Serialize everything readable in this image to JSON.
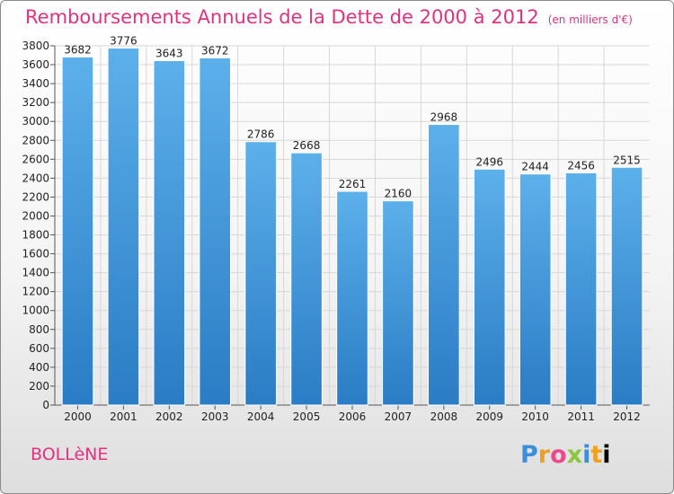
{
  "header": {
    "title": "Remboursements Annuels de la Dette de 2000 à 2012",
    "unit": "(en milliers d'€)"
  },
  "footer": {
    "city": "BOLLèNE",
    "logo": "Proxiti"
  },
  "colors": {
    "title": "#e2317d",
    "bar_light": "#5cb0ea",
    "bar_dark": "#2a7cc4"
  },
  "chart_data": {
    "type": "bar",
    "title": "Remboursements Annuels de la Dette de 2000 à 2012",
    "categories": [
      "2000",
      "2001",
      "2002",
      "2003",
      "2004",
      "2005",
      "2006",
      "2007",
      "2008",
      "2009",
      "2010",
      "2011",
      "2012"
    ],
    "values": [
      3682,
      3776,
      3643,
      3672,
      2786,
      2668,
      2261,
      2160,
      2968,
      2496,
      2444,
      2456,
      2515
    ],
    "ylim": [
      0,
      3800
    ],
    "ytick_step": 200,
    "grid": true,
    "legend": "none"
  }
}
